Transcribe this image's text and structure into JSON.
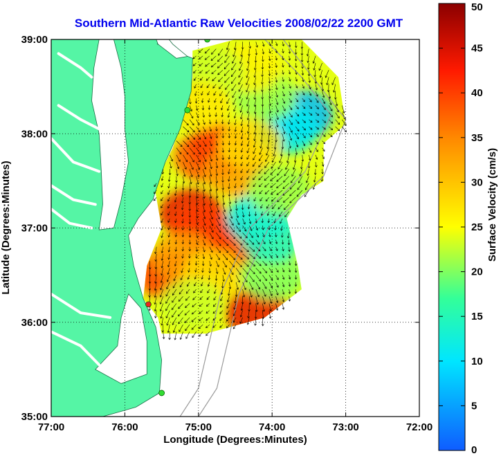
{
  "chart_data": {
    "type": "heatmap",
    "title": "Southern Mid-Atlantic Raw Velocities 2008/02/22 2200 GMT",
    "xlabel": "Longitude (Degrees:Minutes)",
    "ylabel": "Latitude (Degrees:Minutes)",
    "x_ticks": [
      "77:00",
      "76:00",
      "75:00",
      "74:00",
      "73:00",
      "72:00"
    ],
    "y_ticks": [
      "39:00",
      "38:00",
      "37:00",
      "36:00",
      "35:00"
    ],
    "xlim": [
      -77,
      -72
    ],
    "ylim": [
      35,
      39
    ],
    "grid": true,
    "colorbar": {
      "label": "Surface Velocity (cm/s)",
      "range": [
        0,
        50
      ],
      "ticks": [
        "0",
        "5",
        "10",
        "15",
        "20",
        "25",
        "30",
        "35",
        "40",
        "45",
        "50"
      ],
      "placement": "right"
    },
    "speed_field": [
      {
        "lon": -74.9,
        "lat": 37.75,
        "value": 38
      },
      {
        "lon": -74.7,
        "lat": 37.85,
        "value": 40
      },
      {
        "lon": -74.5,
        "lat": 37.6,
        "value": 33
      },
      {
        "lon": -75.1,
        "lat": 37.15,
        "value": 44
      },
      {
        "lon": -74.95,
        "lat": 37.0,
        "value": 40
      },
      {
        "lon": -74.6,
        "lat": 36.8,
        "value": 40
      },
      {
        "lon": -74.2,
        "lat": 36.1,
        "value": 44
      },
      {
        "lon": -75.4,
        "lat": 36.5,
        "value": 40
      },
      {
        "lon": -75.2,
        "lat": 36.7,
        "value": 33
      },
      {
        "lon": -74.8,
        "lat": 36.5,
        "value": 28
      },
      {
        "lon": -74.0,
        "lat": 36.5,
        "value": 20
      },
      {
        "lon": -73.6,
        "lat": 38.2,
        "value": 7
      },
      {
        "lon": -73.8,
        "lat": 38.05,
        "value": 11
      },
      {
        "lon": -74.1,
        "lat": 38.4,
        "value": 21
      },
      {
        "lon": -74.3,
        "lat": 38.7,
        "value": 26
      },
      {
        "lon": -74.8,
        "lat": 38.65,
        "value": 23
      },
      {
        "lon": -74.2,
        "lat": 37.1,
        "value": 11
      },
      {
        "lon": -74.0,
        "lat": 36.9,
        "value": 14
      },
      {
        "lon": -73.9,
        "lat": 37.4,
        "value": 21
      },
      {
        "lon": -75.0,
        "lat": 38.3,
        "value": 27
      },
      {
        "lon": -74.3,
        "lat": 37.9,
        "value": 28
      },
      {
        "lon": -75.1,
        "lat": 36.2,
        "value": 23
      }
    ]
  },
  "colors": {
    "land": "#55f5a5",
    "title": "#0000ee",
    "site_green": "#33dd33",
    "site_red": "#ee2222",
    "contour": "#9a9a9a"
  }
}
